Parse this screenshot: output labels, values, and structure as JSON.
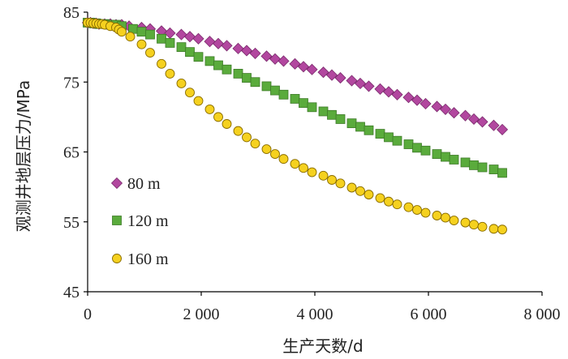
{
  "chart_data": {
    "type": "scatter",
    "xlabel": "生产天数/d",
    "ylabel": "观测井地层压力/MPa",
    "xlim": [
      0,
      8000
    ],
    "ylim": [
      45,
      85
    ],
    "xticks": [
      0,
      2000,
      4000,
      6000,
      8000
    ],
    "xtick_labels": [
      "0",
      "2 000",
      "4 000",
      "6 000",
      "8 000"
    ],
    "yticks": [
      45,
      55,
      65,
      75,
      85
    ],
    "ytick_labels": [
      "45",
      "55",
      "65",
      "75",
      "85"
    ],
    "grid": false,
    "legend_position": "left-center",
    "series": [
      {
        "name": "80 m",
        "marker": "diamond",
        "color": "#b2479f",
        "x": [
          0,
          50,
          100,
          150,
          200,
          300,
          400,
          500,
          600,
          730,
          950,
          1100,
          1300,
          1450,
          1650,
          1800,
          1950,
          2150,
          2300,
          2450,
          2650,
          2800,
          2950,
          3150,
          3300,
          3450,
          3650,
          3800,
          3950,
          4150,
          4300,
          4450,
          4650,
          4800,
          4950,
          5150,
          5300,
          5450,
          5650,
          5800,
          5950,
          6150,
          6300,
          6450,
          6650,
          6800,
          6950,
          7150,
          7300
        ],
        "y": [
          83.5,
          83.5,
          83.4,
          83.4,
          83.3,
          83.3,
          83.3,
          83.2,
          83.2,
          83.0,
          82.8,
          82.6,
          82.3,
          82.0,
          81.8,
          81.5,
          81.2,
          80.8,
          80.5,
          80.2,
          79.8,
          79.5,
          79.1,
          78.7,
          78.3,
          78.0,
          77.6,
          77.2,
          76.8,
          76.4,
          76.0,
          75.6,
          75.2,
          74.8,
          74.4,
          74.0,
          73.6,
          73.2,
          72.8,
          72.4,
          71.9,
          71.5,
          71.1,
          70.6,
          70.2,
          69.7,
          69.3,
          68.8,
          68.2
        ]
      },
      {
        "name": "120 m",
        "marker": "square",
        "color": "#5aab3c",
        "x": [
          0,
          50,
          100,
          150,
          200,
          300,
          400,
          500,
          600,
          800,
          950,
          1100,
          1300,
          1450,
          1650,
          1800,
          1950,
          2150,
          2300,
          2450,
          2650,
          2800,
          2950,
          3150,
          3300,
          3450,
          3650,
          3800,
          3950,
          4150,
          4300,
          4450,
          4650,
          4800,
          4950,
          5150,
          5300,
          5450,
          5650,
          5800,
          5950,
          6150,
          6300,
          6450,
          6650,
          6800,
          6950,
          7150,
          7300
        ],
        "y": [
          83.5,
          83.5,
          83.4,
          83.4,
          83.3,
          83.3,
          83.2,
          83.2,
          83.0,
          82.6,
          82.2,
          81.8,
          81.2,
          80.6,
          80.0,
          79.3,
          78.6,
          78.0,
          77.4,
          76.8,
          76.2,
          75.6,
          75.0,
          74.4,
          73.8,
          73.2,
          72.6,
          72.0,
          71.4,
          70.8,
          70.3,
          69.7,
          69.1,
          68.6,
          68.1,
          67.6,
          67.1,
          66.6,
          66.1,
          65.6,
          65.2,
          64.7,
          64.3,
          63.9,
          63.5,
          63.1,
          62.8,
          62.5,
          62.0
        ]
      },
      {
        "name": "160 m",
        "marker": "circle",
        "color": "#f5d11f",
        "x": [
          0,
          50,
          100,
          150,
          200,
          250,
          300,
          400,
          500,
          550,
          600,
          750,
          950,
          1100,
          1300,
          1450,
          1650,
          1800,
          1950,
          2150,
          2300,
          2450,
          2650,
          2800,
          2950,
          3150,
          3300,
          3450,
          3650,
          3800,
          3950,
          4150,
          4300,
          4450,
          4650,
          4800,
          4950,
          5150,
          5300,
          5450,
          5650,
          5800,
          5950,
          6150,
          6300,
          6450,
          6650,
          6800,
          6950,
          7150,
          7300
        ],
        "y": [
          83.5,
          83.5,
          83.4,
          83.4,
          83.3,
          83.3,
          83.2,
          83.0,
          82.8,
          82.5,
          82.2,
          81.5,
          80.4,
          79.2,
          77.6,
          76.2,
          74.8,
          73.5,
          72.3,
          71.1,
          70.0,
          69.0,
          68.0,
          67.1,
          66.2,
          65.4,
          64.7,
          64.0,
          63.3,
          62.7,
          62.1,
          61.6,
          61.0,
          60.5,
          59.9,
          59.4,
          58.9,
          58.4,
          57.9,
          57.5,
          57.1,
          56.7,
          56.3,
          55.9,
          55.6,
          55.2,
          54.9,
          54.6,
          54.3,
          54.0,
          53.9
        ]
      }
    ]
  }
}
